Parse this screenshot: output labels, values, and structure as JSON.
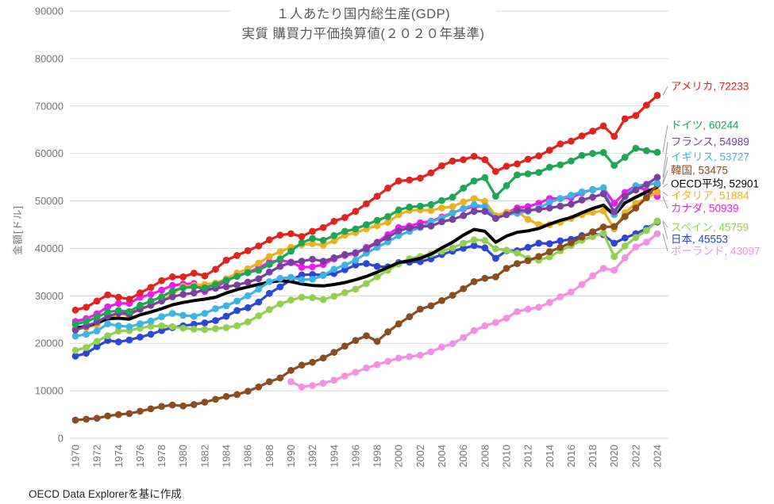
{
  "title": {
    "line1": "１人あたり国内総生産(GDP)",
    "line2": "実質 購買力平価換算値(２０２０年基準)"
  },
  "source_note": "OECD Data Explorerを基に作成",
  "chart_data": {
    "type": "line",
    "title": "１人あたり国内総生産(GDP) 実質 購買力平価換算値(2020年基準)",
    "xlabel": "",
    "ylabel": "金額[ドル]",
    "ylim": [
      0,
      90000
    ],
    "ytick_step": 10000,
    "xtick_step": 2,
    "grid": true,
    "legend_position": "right-end-labels",
    "marker_style": "filled-circle",
    "x": [
      1970,
      1971,
      1972,
      1973,
      1974,
      1975,
      1976,
      1977,
      1978,
      1979,
      1980,
      1981,
      1982,
      1983,
      1984,
      1985,
      1986,
      1987,
      1988,
      1989,
      1990,
      1991,
      1992,
      1993,
      1994,
      1995,
      1996,
      1997,
      1998,
      1999,
      2000,
      2001,
      2002,
      2003,
      2004,
      2005,
      2006,
      2007,
      2008,
      2009,
      2010,
      2011,
      2012,
      2013,
      2014,
      2015,
      2016,
      2017,
      2018,
      2019,
      2020,
      2021,
      2022,
      2023,
      2024
    ],
    "series": [
      {
        "id": "usa",
        "name": "アメリカ",
        "end_value": 72233,
        "color": "#e0231c",
        "markers": true,
        "label_y": 109,
        "values": [
          27000,
          27600,
          28900,
          30200,
          29700,
          29300,
          30600,
          31800,
          33200,
          34000,
          34000,
          34800,
          34200,
          35600,
          37500,
          38500,
          39500,
          40500,
          41800,
          42800,
          43100,
          42500,
          43600,
          44400,
          45700,
          46500,
          47800,
          49400,
          51000,
          52700,
          54200,
          54400,
          54800,
          55900,
          57400,
          58400,
          58700,
          59400,
          58700,
          56200,
          57300,
          57800,
          58800,
          59500,
          60700,
          62000,
          62600,
          63700,
          64700,
          65800,
          63600,
          67300,
          68000,
          70200,
          72233
        ]
      },
      {
        "id": "germany",
        "name": "ドイツ",
        "end_value": 60244,
        "color": "#1ca656",
        "markers": true,
        "label_y": 158,
        "values": [
          24000,
          24600,
          25500,
          26600,
          26900,
          26700,
          28000,
          28900,
          29800,
          31000,
          31700,
          31900,
          31700,
          32400,
          33300,
          34100,
          34900,
          35400,
          36600,
          37800,
          39400,
          41200,
          42100,
          41700,
          42700,
          43600,
          44100,
          45000,
          45900,
          46700,
          48100,
          48700,
          48900,
          49200,
          50100,
          50800,
          52700,
          54200,
          54900,
          51000,
          53200,
          55500,
          55700,
          56000,
          57100,
          57600,
          58400,
          59600,
          60000,
          60200,
          57500,
          59200,
          61100,
          60600,
          60244
        ]
      },
      {
        "id": "france",
        "name": "フランス",
        "end_value": 54989,
        "color": "#7b3fa0",
        "markers": true,
        "label_y": 179,
        "values": [
          22800,
          23600,
          24500,
          25700,
          26400,
          26200,
          27200,
          28000,
          28900,
          29800,
          30300,
          30600,
          31300,
          31600,
          31900,
          32300,
          32900,
          33600,
          35000,
          36200,
          37000,
          37300,
          37700,
          37300,
          38000,
          38700,
          39100,
          39900,
          41200,
          42300,
          43700,
          44300,
          44600,
          44700,
          45600,
          46100,
          46900,
          47800,
          47800,
          46300,
          47100,
          48000,
          48000,
          48200,
          48500,
          48900,
          49300,
          50200,
          50800,
          51500,
          47700,
          51000,
          52300,
          53500,
          54989
        ]
      },
      {
        "id": "uk",
        "name": "イギリス",
        "end_value": 53727,
        "color": "#3cb4e5",
        "markers": true,
        "label_y": 198,
        "values": [
          21500,
          21900,
          22600,
          24100,
          23700,
          23500,
          24100,
          24700,
          25600,
          26300,
          25900,
          25700,
          26300,
          27300,
          27900,
          28900,
          30000,
          31400,
          33000,
          33700,
          33900,
          33400,
          33500,
          34300,
          35600,
          36500,
          37500,
          39000,
          40200,
          41400,
          42700,
          43600,
          44400,
          45600,
          46400,
          47400,
          48400,
          49200,
          48800,
          46400,
          47100,
          47400,
          47800,
          48500,
          49700,
          50500,
          51200,
          51900,
          52300,
          52800,
          47100,
          50900,
          53200,
          53400,
          53727
        ]
      },
      {
        "id": "korea",
        "name": "韓国",
        "end_value": 53475,
        "color": "#8b4c1f",
        "markers": true,
        "label_y": 215,
        "values": [
          3800,
          4000,
          4200,
          4700,
          5000,
          5200,
          5700,
          6200,
          6700,
          7000,
          6800,
          7100,
          7600,
          8200,
          8800,
          9200,
          9900,
          10800,
          11900,
          12700,
          14300,
          15400,
          16000,
          16900,
          18100,
          19400,
          20600,
          21600,
          20400,
          22400,
          24100,
          25600,
          27200,
          27900,
          29000,
          30100,
          31500,
          33000,
          33700,
          34000,
          35800,
          36800,
          37400,
          38300,
          39300,
          40200,
          41200,
          42400,
          43500,
          44500,
          44600,
          46700,
          48500,
          50700,
          53475
        ]
      },
      {
        "id": "oecd-average",
        "name": "OECD平均",
        "end_value": 52901,
        "color": "#000000",
        "markers": false,
        "label_y": 232,
        "values": [
          23200,
          23600,
          24300,
          25200,
          25300,
          25100,
          26000,
          26600,
          27300,
          28100,
          28600,
          29000,
          29300,
          29700,
          30600,
          31300,
          31900,
          32400,
          32900,
          33200,
          33000,
          32500,
          32200,
          32100,
          32400,
          32800,
          33400,
          34100,
          35000,
          36000,
          37000,
          37400,
          37900,
          38800,
          40100,
          41300,
          42800,
          44000,
          43600,
          41300,
          42600,
          43400,
          43700,
          44200,
          45100,
          45900,
          46500,
          47500,
          48400,
          49100,
          47000,
          49600,
          50800,
          51900,
          52901
        ]
      },
      {
        "id": "italy",
        "name": "イタリア",
        "end_value": 51884,
        "color": "#edb120",
        "markers": true,
        "label_y": 247,
        "values": [
          23000,
          23300,
          23900,
          25300,
          26300,
          25800,
          27400,
          28000,
          28900,
          30400,
          32000,
          32200,
          32400,
          32700,
          33600,
          34800,
          35700,
          36900,
          38300,
          39300,
          40200,
          40800,
          41000,
          40700,
          41600,
          42800,
          43300,
          44100,
          44800,
          45500,
          47100,
          48000,
          48100,
          48000,
          48500,
          48800,
          49800,
          50500,
          49900,
          46900,
          47600,
          47800,
          46100,
          45000,
          45000,
          45500,
          46300,
          47100,
          47600,
          47900,
          44100,
          47500,
          49500,
          50600,
          51884
        ]
      },
      {
        "id": "canada",
        "name": "カナダ",
        "end_value": 50939,
        "color": "#ee1cee",
        "markers": true,
        "label_y": 263,
        "values": [
          24600,
          25200,
          26200,
          27700,
          28400,
          28400,
          29700,
          30300,
          31200,
          32200,
          32500,
          32600,
          30900,
          31800,
          33100,
          34300,
          34900,
          35900,
          37100,
          37500,
          37100,
          36000,
          36100,
          36600,
          37800,
          38500,
          38900,
          40200,
          41300,
          42900,
          44400,
          44700,
          45400,
          45700,
          46600,
          47500,
          48300,
          48800,
          48800,
          46500,
          47500,
          48500,
          48800,
          49500,
          50500,
          50500,
          50700,
          51700,
          52400,
          52700,
          49500,
          51800,
          53200,
          52200,
          50939
        ]
      },
      {
        "id": "spain",
        "name": "スペイン",
        "end_value": 45759,
        "color": "#93d04f",
        "markers": true,
        "label_y": 287,
        "values": [
          18500,
          19100,
          20400,
          21600,
          22600,
          22700,
          23200,
          23600,
          23700,
          23500,
          23200,
          23000,
          22900,
          23100,
          23300,
          23700,
          24500,
          25800,
          27100,
          28300,
          29100,
          29700,
          29600,
          29200,
          29900,
          30700,
          31400,
          32600,
          34000,
          35400,
          36700,
          37800,
          38300,
          38800,
          39400,
          40100,
          41100,
          41800,
          41700,
          39900,
          39600,
          39000,
          37900,
          37500,
          38200,
          39500,
          40600,
          41700,
          42500,
          43200,
          38300,
          40500,
          42300,
          43800,
          45759
        ]
      },
      {
        "id": "japan",
        "name": "日本",
        "end_value": 45553,
        "color": "#2c46d8",
        "markers": true,
        "label_y": 302,
        "values": [
          17300,
          17900,
          19300,
          20600,
          20300,
          20700,
          21300,
          21900,
          22700,
          23300,
          23700,
          24000,
          24300,
          24800,
          25700,
          26900,
          27500,
          28700,
          30500,
          31900,
          33400,
          34400,
          34500,
          34400,
          34700,
          35500,
          36500,
          36800,
          36200,
          36100,
          37000,
          37100,
          37200,
          37800,
          38700,
          39400,
          40000,
          40600,
          40100,
          37900,
          39500,
          39500,
          40200,
          41100,
          41000,
          41600,
          41900,
          42700,
          43000,
          42900,
          41100,
          42200,
          43100,
          44200,
          45553
        ]
      },
      {
        "id": "poland",
        "name": "ポーランド",
        "end_value": 43097,
        "color": "#f48fe3",
        "markers": true,
        "label_y": 317,
        "values": [
          null,
          null,
          null,
          null,
          null,
          null,
          null,
          null,
          null,
          null,
          null,
          null,
          null,
          null,
          null,
          null,
          null,
          null,
          null,
          null,
          11900,
          10800,
          11100,
          11600,
          12200,
          13100,
          13900,
          14800,
          15500,
          16200,
          16900,
          17200,
          17500,
          18200,
          19200,
          19900,
          21200,
          22700,
          23700,
          24400,
          25300,
          26700,
          27200,
          27600,
          28600,
          29800,
          30800,
          32400,
          34200,
          35800,
          35400,
          38000,
          40300,
          41300,
          43097
        ]
      }
    ],
    "style_hints": {
      "gridline_color": "#d9d9d9",
      "axis_line_color": "#cccccc",
      "tick_label_color": "#737373",
      "title_color": "#595959",
      "connector_color": "#9e9e9e"
    }
  }
}
